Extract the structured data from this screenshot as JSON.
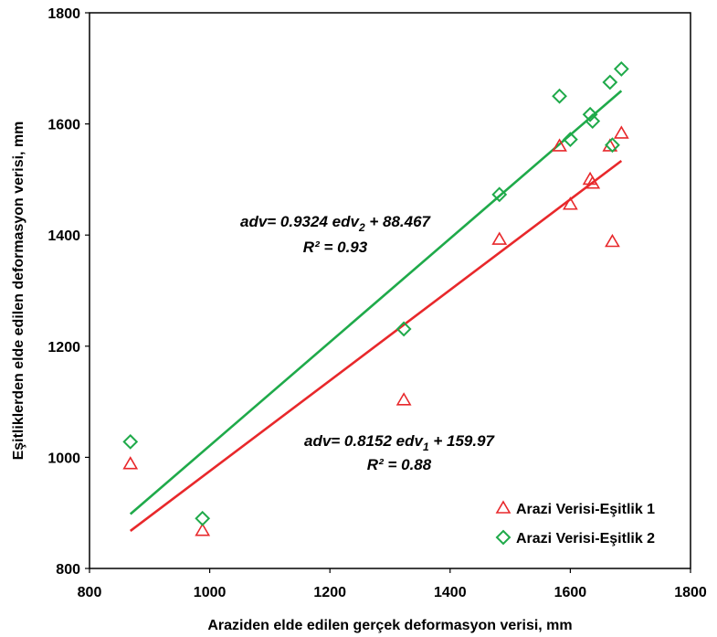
{
  "chart_data": {
    "type": "scatter",
    "xlabel": "Araziden elde edilen gerçek deformasyon verisi, mm",
    "ylabel": "Eşitliklerden elde edilen deformasyon verisi, mm",
    "xlim": [
      800,
      1800
    ],
    "ylim": [
      800,
      1800
    ],
    "xticks": [
      "800",
      "1000",
      "1200",
      "1400",
      "1600",
      "1800"
    ],
    "yticks": [
      "800",
      "1000",
      "1200",
      "1400",
      "1600",
      "1800"
    ],
    "grid": false,
    "legend_position": "bottom-right",
    "series": [
      {
        "name": "Arazi Verisi-Eşitlik 1",
        "marker": "triangle",
        "color": "#e8282b",
        "points": [
          [
            868,
            988
          ],
          [
            988,
            868
          ],
          [
            1323,
            1103
          ],
          [
            1482,
            1392
          ],
          [
            1582,
            1560
          ],
          [
            1600,
            1455
          ],
          [
            1633,
            1500
          ],
          [
            1637,
            1493
          ],
          [
            1666,
            1560
          ],
          [
            1670,
            1388
          ],
          [
            1685,
            1583
          ]
        ],
        "trendline": {
          "slope": 0.8152,
          "intercept": 159.97,
          "x_range": [
            868,
            1685
          ],
          "equation_prefix": "adv= 0.8152 edv",
          "equation_sub": "1",
          "equation_suffix": " + 159.97",
          "r2_label": "R² = 0.88"
        }
      },
      {
        "name": "Arazi Verisi-Eşitlik 2",
        "marker": "diamond",
        "color": "#1faa4a",
        "points": [
          [
            868,
            1028
          ],
          [
            988,
            890
          ],
          [
            1323,
            1231
          ],
          [
            1482,
            1473
          ],
          [
            1582,
            1650
          ],
          [
            1600,
            1572
          ],
          [
            1633,
            1617
          ],
          [
            1637,
            1605
          ],
          [
            1666,
            1675
          ],
          [
            1670,
            1562
          ],
          [
            1685,
            1699
          ]
        ],
        "trendline": {
          "slope": 0.9324,
          "intercept": 88.467,
          "x_range": [
            868,
            1685
          ],
          "equation_prefix": "adv= 0.9324 edv",
          "equation_sub": "2",
          "equation_suffix": " + 88.467",
          "r2_label": "R² = 0.93"
        }
      }
    ]
  }
}
